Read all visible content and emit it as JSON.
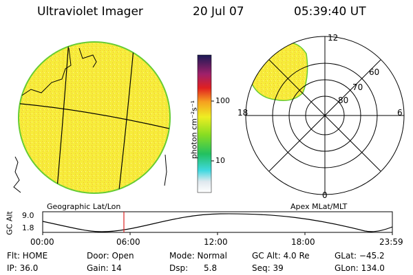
{
  "header": {
    "instrument": "Ultraviolet Imager",
    "date": "20 Jul 07",
    "time": "05:39:40 UT"
  },
  "colorbar": {
    "unit_label": "photon cm⁻²s⁻¹",
    "tick_100": "100",
    "tick_10": "10"
  },
  "polar": {
    "top": "12",
    "bottom": "0",
    "left": "18",
    "right": "6",
    "lat_60": "60",
    "lat_70": "70",
    "lat_80": "80"
  },
  "timeline": {
    "left_caption": "Geographic Lat/Lon",
    "right_caption": "Apex MLat/MLT",
    "axis_label": "GC Alt",
    "y_top": "9.0",
    "y_bottom": "1.8",
    "x_ticks": [
      "00:00",
      "06:00",
      "12:00",
      "18:00",
      "23:59"
    ]
  },
  "meta": {
    "flt": "Flt: HOME",
    "ip": "IP: 36.0",
    "door": "Door: Open",
    "gain": "Gain: 14",
    "mode": "Mode: Normal",
    "dsp_label": "Dsp:",
    "dsp_value": "5.8",
    "gc_alt": "GC Alt: 4.0 Re",
    "seq": "Seq: 39",
    "glat": "GLat: −45.2",
    "glon": "GLon: 134.0"
  },
  "colors": {
    "disk_fill": "#f7ec3a",
    "disk_edge": "#66cc33",
    "cursor": "#dd2222"
  }
}
